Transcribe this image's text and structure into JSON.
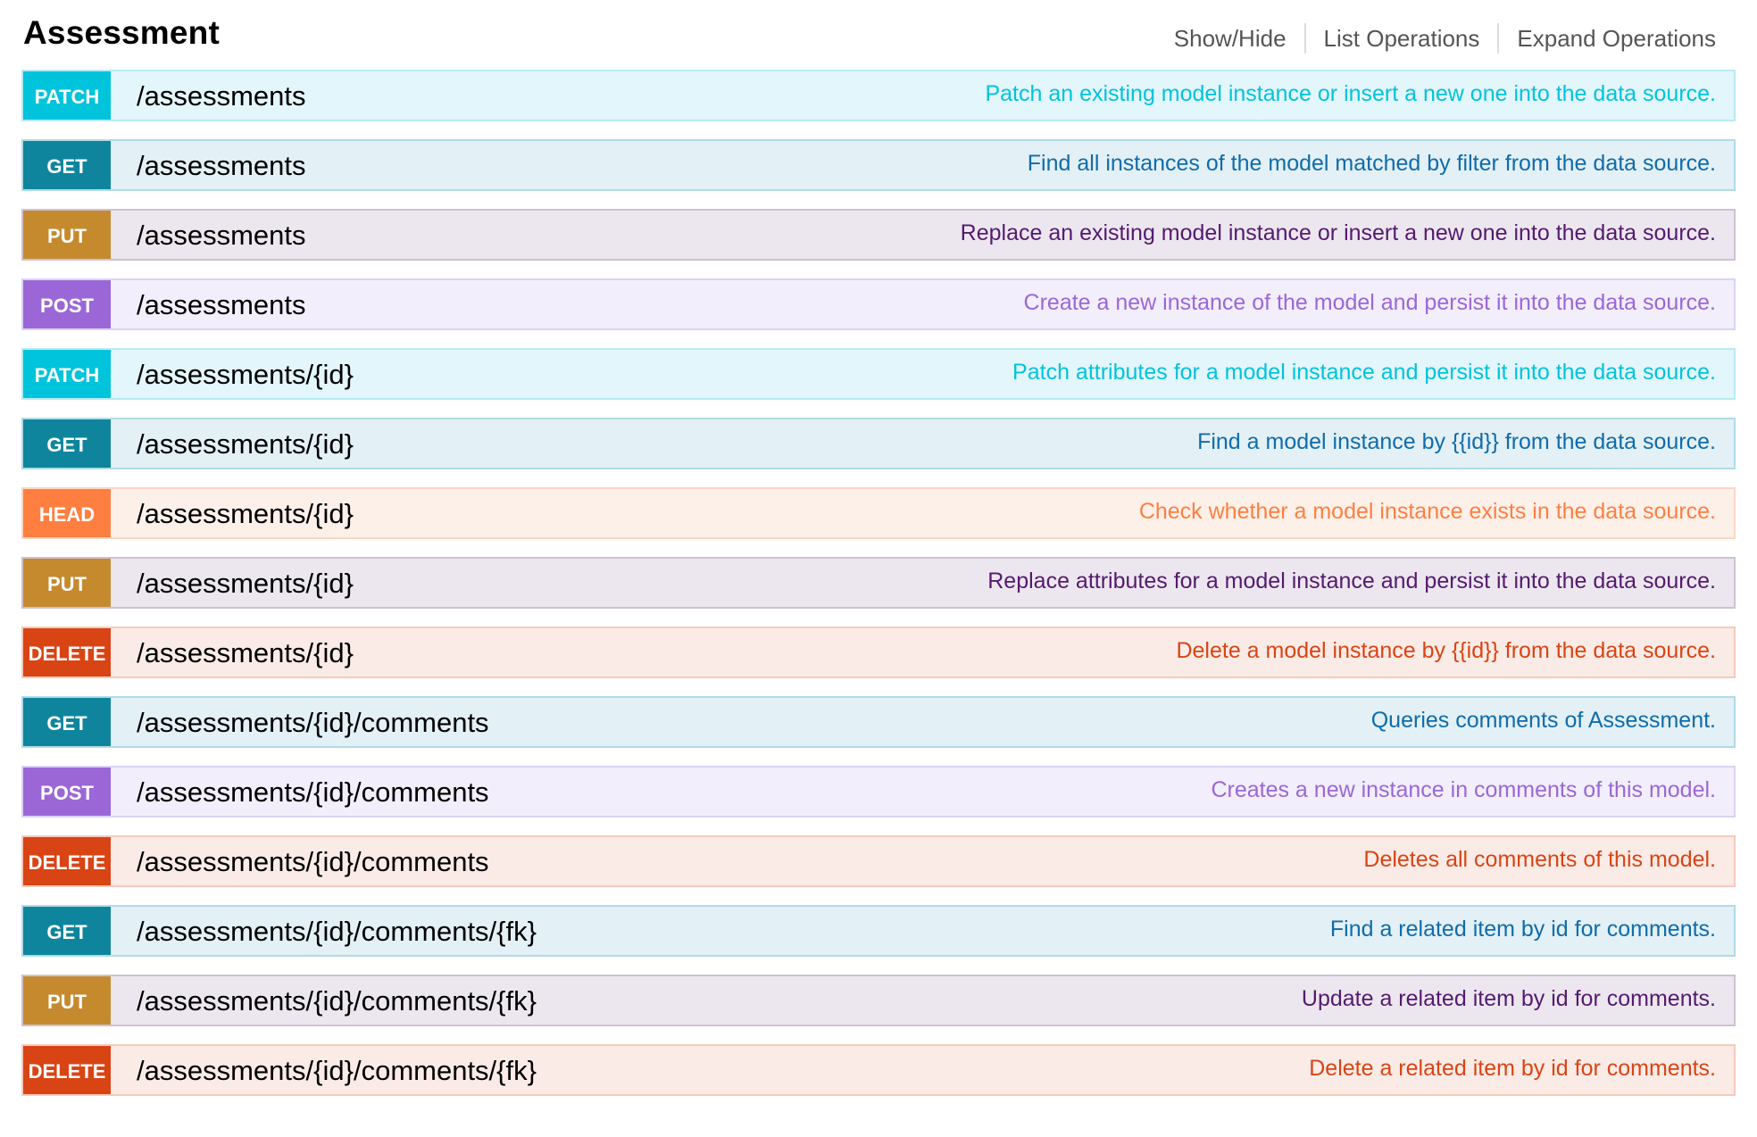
{
  "resource": {
    "title": "Assessment",
    "actions": {
      "show_hide": "Show/Hide",
      "list_operations": "List Operations",
      "expand_operations": "Expand Operations"
    }
  },
  "operations": [
    {
      "method": "PATCH",
      "path": "/assessments",
      "summary": "Patch an existing model instance or insert a new one into the data source."
    },
    {
      "method": "GET",
      "path": "/assessments",
      "summary": "Find all instances of the model matched by filter from the data source."
    },
    {
      "method": "PUT",
      "path": "/assessments",
      "summary": "Replace an existing model instance or insert a new one into the data source."
    },
    {
      "method": "POST",
      "path": "/assessments",
      "summary": "Create a new instance of the model and persist it into the data source."
    },
    {
      "method": "PATCH",
      "path": "/assessments/{id}",
      "summary": "Patch attributes for a model instance and persist it into the data source."
    },
    {
      "method": "GET",
      "path": "/assessments/{id}",
      "summary": "Find a model instance by {{id}} from the data source."
    },
    {
      "method": "HEAD",
      "path": "/assessments/{id}",
      "summary": "Check whether a model instance exists in the data source."
    },
    {
      "method": "PUT",
      "path": "/assessments/{id}",
      "summary": "Replace attributes for a model instance and persist it into the data source."
    },
    {
      "method": "DELETE",
      "path": "/assessments/{id}",
      "summary": "Delete a model instance by {{id}} from the data source."
    },
    {
      "method": "GET",
      "path": "/assessments/{id}/comments",
      "summary": "Queries comments of Assessment."
    },
    {
      "method": "POST",
      "path": "/assessments/{id}/comments",
      "summary": "Creates a new instance in comments of this model."
    },
    {
      "method": "DELETE",
      "path": "/assessments/{id}/comments",
      "summary": "Deletes all comments of this model."
    },
    {
      "method": "GET",
      "path": "/assessments/{id}/comments/{fk}",
      "summary": "Find a related item by id for comments."
    },
    {
      "method": "PUT",
      "path": "/assessments/{id}/comments/{fk}",
      "summary": "Update a related item by id for comments."
    },
    {
      "method": "DELETE",
      "path": "/assessments/{id}/comments/{fk}",
      "summary": "Delete a related item by id for comments."
    }
  ]
}
